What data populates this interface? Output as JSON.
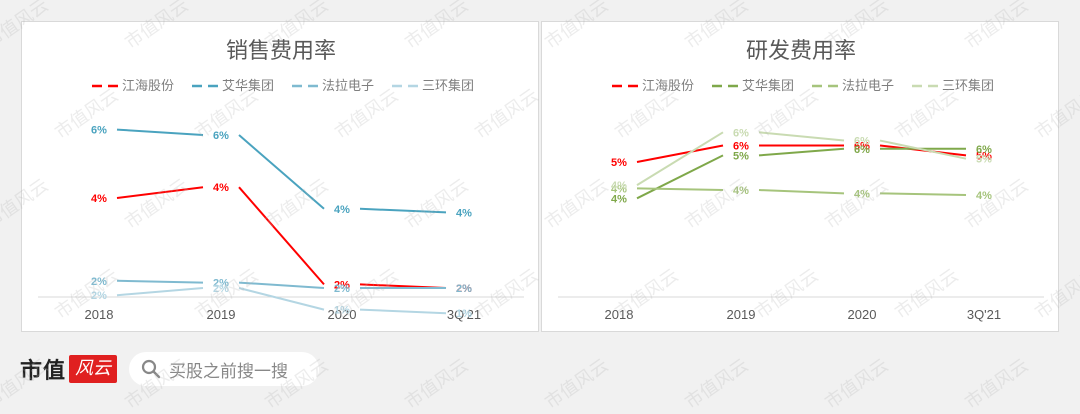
{
  "footer": {
    "brand_text": "市值",
    "brand_badge": "风云",
    "search_placeholder": "买股之前搜一搜"
  },
  "watermark_text": "市值风云",
  "chart_data": [
    {
      "type": "line",
      "title": "销售费用率",
      "categories": [
        "2018",
        "2019",
        "2020",
        "3Q'21"
      ],
      "xlabel": "",
      "ylabel": "",
      "grid": false,
      "legend_position": "top",
      "series": [
        {
          "name": "江海股份",
          "color": "#ff0000",
          "values": [
            4,
            4,
            2,
            2
          ],
          "y_est": [
            4.3,
            4.6,
            1.9,
            1.8
          ]
        },
        {
          "name": "艾华集团",
          "color": "#4aa3bf",
          "values": [
            6,
            6,
            4,
            4
          ],
          "y_est": [
            6.2,
            6.05,
            4.0,
            3.9
          ]
        },
        {
          "name": "法拉电子",
          "color": "#7fbad0",
          "values": [
            2,
            2,
            2,
            2
          ],
          "y_est": [
            2.0,
            1.95,
            1.8,
            1.8
          ]
        },
        {
          "name": "三环集团",
          "color": "#b4d6e3",
          "values": [
            2,
            2,
            1,
            1
          ],
          "y_est": [
            1.6,
            1.8,
            1.2,
            1.1
          ]
        }
      ]
    },
    {
      "type": "line",
      "title": "研发费用率",
      "categories": [
        "2018",
        "2019",
        "2020",
        "3Q'21"
      ],
      "xlabel": "",
      "ylabel": "",
      "grid": false,
      "legend_position": "top",
      "series": [
        {
          "name": "江海股份",
          "color": "#ff0000",
          "values": [
            5,
            6,
            6,
            5
          ],
          "y_est": [
            5.4,
            5.9,
            5.9,
            5.6
          ]
        },
        {
          "name": "艾华集团",
          "color": "#7fa84a",
          "values": [
            4,
            5,
            6,
            6
          ],
          "y_est": [
            4.3,
            5.6,
            5.8,
            5.8
          ]
        },
        {
          "name": "法拉电子",
          "color": "#a6c47c",
          "values": [
            4,
            4,
            4,
            4
          ],
          "y_est": [
            4.6,
            4.55,
            4.45,
            4.4
          ]
        },
        {
          "name": "三环集团",
          "color": "#c9dbb2",
          "values": [
            4,
            6,
            6,
            5
          ],
          "y_est": [
            4.7,
            6.3,
            6.05,
            5.5
          ]
        }
      ]
    }
  ]
}
